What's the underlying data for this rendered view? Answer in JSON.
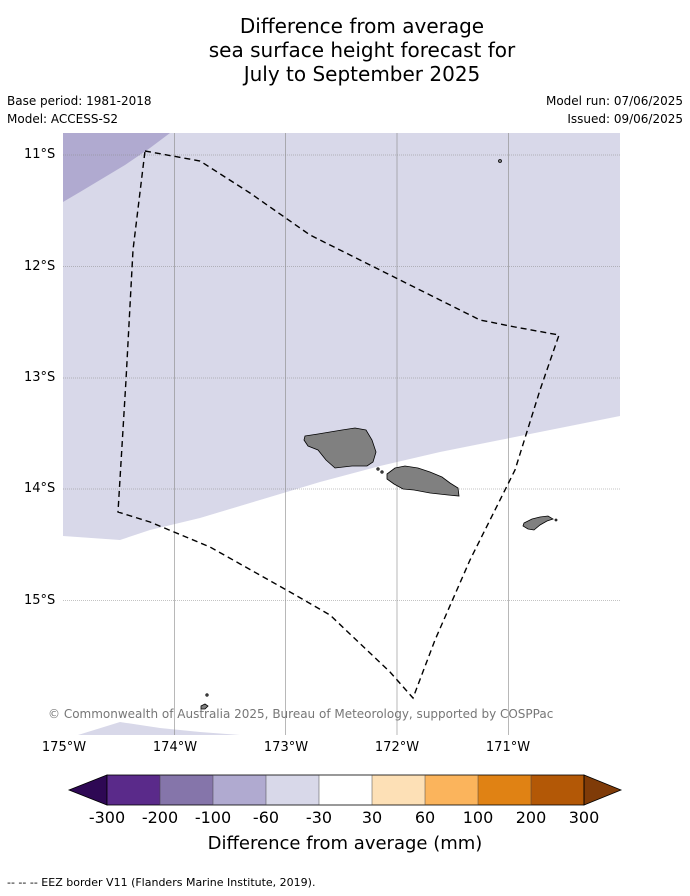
{
  "title": {
    "line1": "Difference from average",
    "line2": "sea surface height forecast for",
    "line3": "July to September 2025"
  },
  "meta_left": {
    "base_period": "Base period: 1981-2018",
    "model": "Model: ACCESS-S2"
  },
  "meta_right": {
    "model_run": "Model run: 07/06/2025",
    "issued": "Issued: 09/06/2025"
  },
  "map": {
    "lat_labels": [
      "11°S",
      "12°S",
      "13°S",
      "14°S",
      "15°S"
    ],
    "lon_labels": [
      "175°W",
      "174°W",
      "173°W",
      "172°W",
      "171°W"
    ],
    "copyright": "© Commonwealth of Australia 2025, Bureau of Meteorology, supported by COSPPac",
    "fill_colors": {
      "band_-60_-30": "#d8d8e9",
      "band_-100_-60": "#b0aad0",
      "land": "#808080",
      "eez": "#000000"
    }
  },
  "colorbar": {
    "title": "Difference from average (mm)",
    "ticks": [
      "-300",
      "-200",
      "-100",
      "-60",
      "-30",
      "30",
      "60",
      "100",
      "200",
      "300"
    ],
    "colors": [
      "#2e0854",
      "#5a2a8a",
      "#8575aa",
      "#b0aad0",
      "#d8d8e9",
      "#ffffff",
      "#fde0b6",
      "#fbb45c",
      "#e08214",
      "#b35806",
      "#7f3b08"
    ]
  },
  "footnote": "--  --  -- EEZ border V11 (Flanders Marine Institute, 2019)."
}
